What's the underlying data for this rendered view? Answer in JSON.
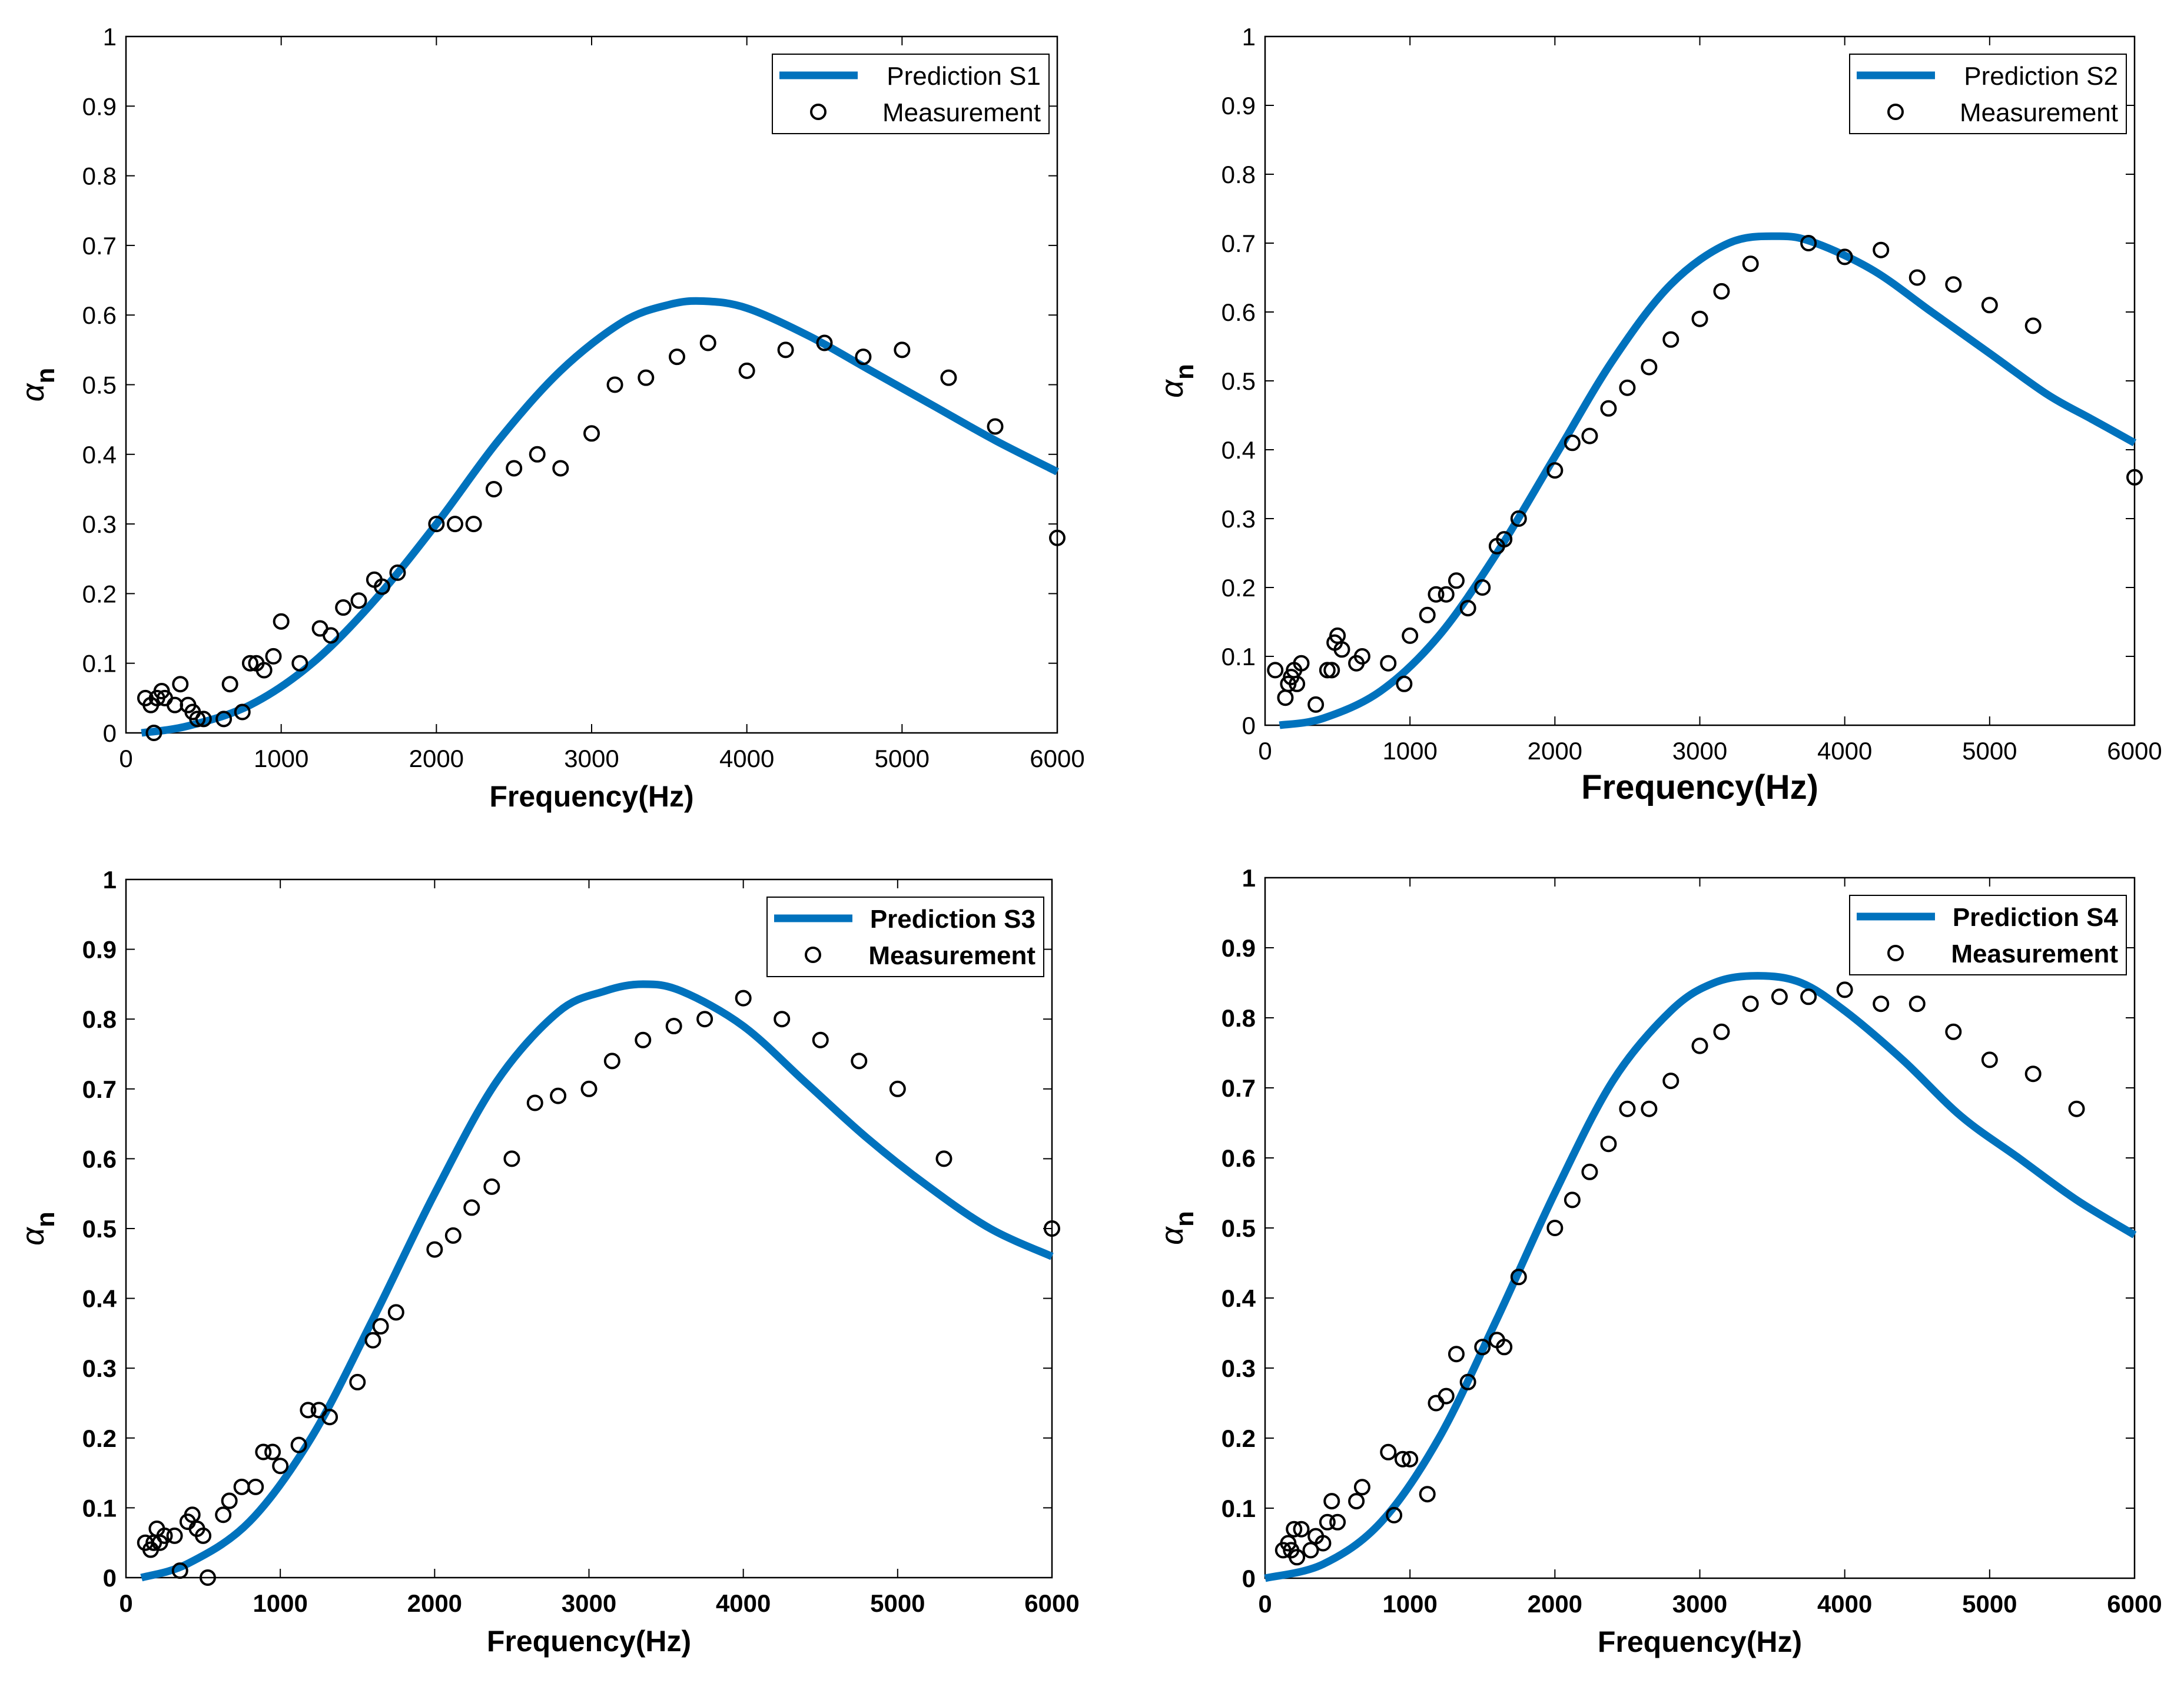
{
  "chart_data": [
    {
      "type": "line",
      "title": "",
      "xlabel": "Frequency(Hz)",
      "ylabel": "α",
      "ylabel_subscript": "n",
      "xlim": [
        0,
        6000
      ],
      "ylim": [
        0,
        1
      ],
      "xticks": [
        "0",
        "1000",
        "2000",
        "3000",
        "4000",
        "5000",
        "6000"
      ],
      "yticks": [
        "0",
        "0.1",
        "0.2",
        "0.3",
        "0.4",
        "0.5",
        "0.6",
        "0.7",
        "0.8",
        "0.9",
        "1"
      ],
      "grid": false,
      "legend_position": "top-right",
      "series": [
        {
          "name": "Prediction S1",
          "style": "line",
          "color": "#0072BD",
          "x": [
            100,
            400,
            800,
            1200,
            1600,
            2000,
            2400,
            2800,
            3200,
            3500,
            3720,
            4000,
            4400,
            4800,
            5200,
            5600,
            6000
          ],
          "y": [
            0.0,
            0.01,
            0.04,
            0.1,
            0.19,
            0.3,
            0.42,
            0.52,
            0.59,
            0.615,
            0.62,
            0.61,
            0.57,
            0.52,
            0.47,
            0.42,
            0.375
          ]
        },
        {
          "name": "Measurement",
          "style": "marker",
          "color": "#000000",
          "x": [
            125,
            160,
            200,
            250,
            315,
            400,
            500,
            630,
            800,
            1000,
            1250,
            1600,
            2000,
            2500,
            3150,
            4000,
            5000,
            6000,
            180,
            230,
            350,
            430,
            460,
            670,
            750,
            840,
            890,
            950,
            1120,
            1320,
            1400,
            1500,
            1650,
            1750,
            2120,
            2240,
            2370,
            2650,
            2800,
            3000,
            3350,
            3550,
            3750,
            4250,
            4500,
            4750,
            5300,
            5600
          ],
          "y": [
            0.05,
            0.04,
            0.05,
            0.05,
            0.04,
            0.04,
            0.02,
            0.02,
            0.1,
            0.16,
            0.15,
            0.22,
            0.3,
            0.38,
            0.5,
            0.52,
            0.55,
            0.28,
            0.0,
            0.06,
            0.07,
            0.03,
            0.02,
            0.07,
            0.03,
            0.1,
            0.09,
            0.11,
            0.1,
            0.14,
            0.18,
            0.19,
            0.21,
            0.23,
            0.3,
            0.3,
            0.35,
            0.4,
            0.38,
            0.43,
            0.51,
            0.54,
            0.56,
            0.55,
            0.56,
            0.54,
            0.51,
            0.44
          ]
        }
      ]
    },
    {
      "type": "line",
      "title": "",
      "xlabel": "Frequency(Hz)",
      "ylabel": "α",
      "ylabel_subscript": "n",
      "xlim": [
        0,
        6000
      ],
      "ylim": [
        0,
        1
      ],
      "xticks": [
        "0",
        "1000",
        "2000",
        "3000",
        "4000",
        "5000",
        "6000"
      ],
      "yticks": [
        "0",
        "0.1",
        "0.2",
        "0.3",
        "0.4",
        "0.5",
        "0.6",
        "0.7",
        "0.8",
        "0.9",
        "1"
      ],
      "grid": false,
      "legend_position": "top-right",
      "series": [
        {
          "name": "Prediction S2",
          "style": "line",
          "color": "#0072BD",
          "x": [
            100,
            400,
            800,
            1200,
            1600,
            2000,
            2400,
            2800,
            3200,
            3550,
            3800,
            4200,
            4600,
            5000,
            5400,
            5700,
            6000
          ],
          "y": [
            0.0,
            0.01,
            0.05,
            0.13,
            0.25,
            0.39,
            0.53,
            0.64,
            0.7,
            0.71,
            0.7,
            0.66,
            0.6,
            0.54,
            0.48,
            0.445,
            0.41
          ]
        },
        {
          "name": "Measurement",
          "style": "marker",
          "color": "#000000",
          "x": [
            70,
            140,
            160,
            180,
            200,
            220,
            250,
            350,
            430,
            460,
            480,
            500,
            530,
            630,
            670,
            850,
            960,
            1000,
            1120,
            1180,
            1250,
            1320,
            1400,
            1500,
            1600,
            1650,
            1750,
            2000,
            2120,
            2240,
            2370,
            2500,
            2650,
            2800,
            3000,
            3150,
            3350,
            3750,
            4000,
            4250,
            4500,
            4750,
            5000,
            5300,
            6000
          ],
          "y": [
            0.08,
            0.04,
            0.06,
            0.07,
            0.08,
            0.06,
            0.09,
            0.03,
            0.08,
            0.08,
            0.12,
            0.13,
            0.11,
            0.09,
            0.1,
            0.09,
            0.06,
            0.13,
            0.16,
            0.19,
            0.19,
            0.21,
            0.17,
            0.2,
            0.26,
            0.27,
            0.3,
            0.37,
            0.41,
            0.42,
            0.46,
            0.49,
            0.52,
            0.56,
            0.59,
            0.63,
            0.67,
            0.7,
            0.68,
            0.69,
            0.65,
            0.64,
            0.61,
            0.58,
            0.36
          ]
        }
      ]
    },
    {
      "type": "line",
      "title": "",
      "xlabel": "Frequency(Hz)",
      "ylabel": "α",
      "ylabel_subscript": "n",
      "xlim": [
        0,
        6000
      ],
      "ylim": [
        0,
        1
      ],
      "xticks": [
        "0",
        "1000",
        "2000",
        "3000",
        "4000",
        "5000",
        "6000"
      ],
      "yticks": [
        "0",
        "0.1",
        "0.2",
        "0.3",
        "0.4",
        "0.5",
        "0.6",
        "0.7",
        "0.8",
        "0.9",
        "1"
      ],
      "grid": false,
      "legend_position": "top-right",
      "series": [
        {
          "name": "Prediction S3",
          "style": "line",
          "color": "#0072BD",
          "x": [
            100,
            400,
            800,
            1200,
            1600,
            2000,
            2400,
            2800,
            3100,
            3350,
            3600,
            4000,
            4400,
            4800,
            5200,
            5600,
            6000
          ],
          "y": [
            0.0,
            0.02,
            0.08,
            0.2,
            0.37,
            0.55,
            0.71,
            0.81,
            0.84,
            0.85,
            0.84,
            0.79,
            0.71,
            0.63,
            0.56,
            0.5,
            0.46
          ]
        },
        {
          "name": "Measurement",
          "style": "marker",
          "color": "#000000",
          "x": [
            125,
            160,
            180,
            200,
            220,
            250,
            315,
            350,
            400,
            430,
            460,
            500,
            530,
            630,
            670,
            750,
            840,
            890,
            950,
            1000,
            1120,
            1180,
            1250,
            1320,
            1500,
            1600,
            1650,
            1750,
            2000,
            2120,
            2240,
            2370,
            2500,
            2650,
            2800,
            3000,
            3150,
            3350,
            3550,
            3750,
            4000,
            4250,
            4500,
            4750,
            5000,
            5300,
            6000
          ],
          "y": [
            0.05,
            0.04,
            0.05,
            0.07,
            0.05,
            0.06,
            0.06,
            0.01,
            0.08,
            0.09,
            0.07,
            0.06,
            0.0,
            0.09,
            0.11,
            0.13,
            0.13,
            0.18,
            0.18,
            0.16,
            0.19,
            0.24,
            0.24,
            0.23,
            0.28,
            0.34,
            0.36,
            0.38,
            0.47,
            0.49,
            0.53,
            0.56,
            0.6,
            0.68,
            0.69,
            0.7,
            0.74,
            0.77,
            0.79,
            0.8,
            0.83,
            0.8,
            0.77,
            0.74,
            0.7,
            0.6,
            0.5
          ]
        }
      ]
    },
    {
      "type": "line",
      "title": "",
      "xlabel": "Frequency(Hz)",
      "ylabel": "α",
      "ylabel_subscript": "n",
      "xlim": [
        0,
        6000
      ],
      "ylim": [
        0,
        1
      ],
      "xticks": [
        "0",
        "1000",
        "2000",
        "3000",
        "4000",
        "5000",
        "6000"
      ],
      "yticks": [
        "0",
        "0.1",
        "0.2",
        "0.3",
        "0.4",
        "0.5",
        "0.6",
        "0.7",
        "0.8",
        "0.9",
        "1"
      ],
      "grid": false,
      "legend_position": "top-right",
      "series": [
        {
          "name": "Prediction S4",
          "style": "line",
          "color": "#0072BD",
          "x": [
            0,
            400,
            800,
            1200,
            1600,
            2000,
            2400,
            2800,
            3100,
            3400,
            3700,
            4000,
            4400,
            4800,
            5200,
            5600,
            6000
          ],
          "y": [
            0.0,
            0.02,
            0.08,
            0.2,
            0.37,
            0.55,
            0.71,
            0.81,
            0.85,
            0.86,
            0.85,
            0.81,
            0.74,
            0.66,
            0.6,
            0.54,
            0.49
          ]
        },
        {
          "name": "Measurement",
          "style": "marker",
          "color": "#000000",
          "x": [
            125,
            160,
            180,
            200,
            220,
            250,
            315,
            350,
            400,
            430,
            460,
            500,
            630,
            670,
            850,
            890,
            950,
            1000,
            1120,
            1180,
            1250,
            1320,
            1400,
            1500,
            1600,
            1650,
            1750,
            2000,
            2120,
            2240,
            2370,
            2500,
            2650,
            2800,
            3000,
            3150,
            3350,
            3550,
            3750,
            4000,
            4250,
            4500,
            4750,
            5000,
            5300,
            5600
          ],
          "y": [
            0.04,
            0.05,
            0.04,
            0.07,
            0.03,
            0.07,
            0.04,
            0.06,
            0.05,
            0.08,
            0.11,
            0.08,
            0.11,
            0.13,
            0.18,
            0.09,
            0.17,
            0.17,
            0.12,
            0.25,
            0.26,
            0.32,
            0.28,
            0.33,
            0.34,
            0.33,
            0.43,
            0.5,
            0.54,
            0.58,
            0.62,
            0.67,
            0.67,
            0.71,
            0.76,
            0.78,
            0.82,
            0.83,
            0.83,
            0.84,
            0.82,
            0.82,
            0.78,
            0.74,
            0.72,
            0.67
          ]
        }
      ]
    }
  ]
}
